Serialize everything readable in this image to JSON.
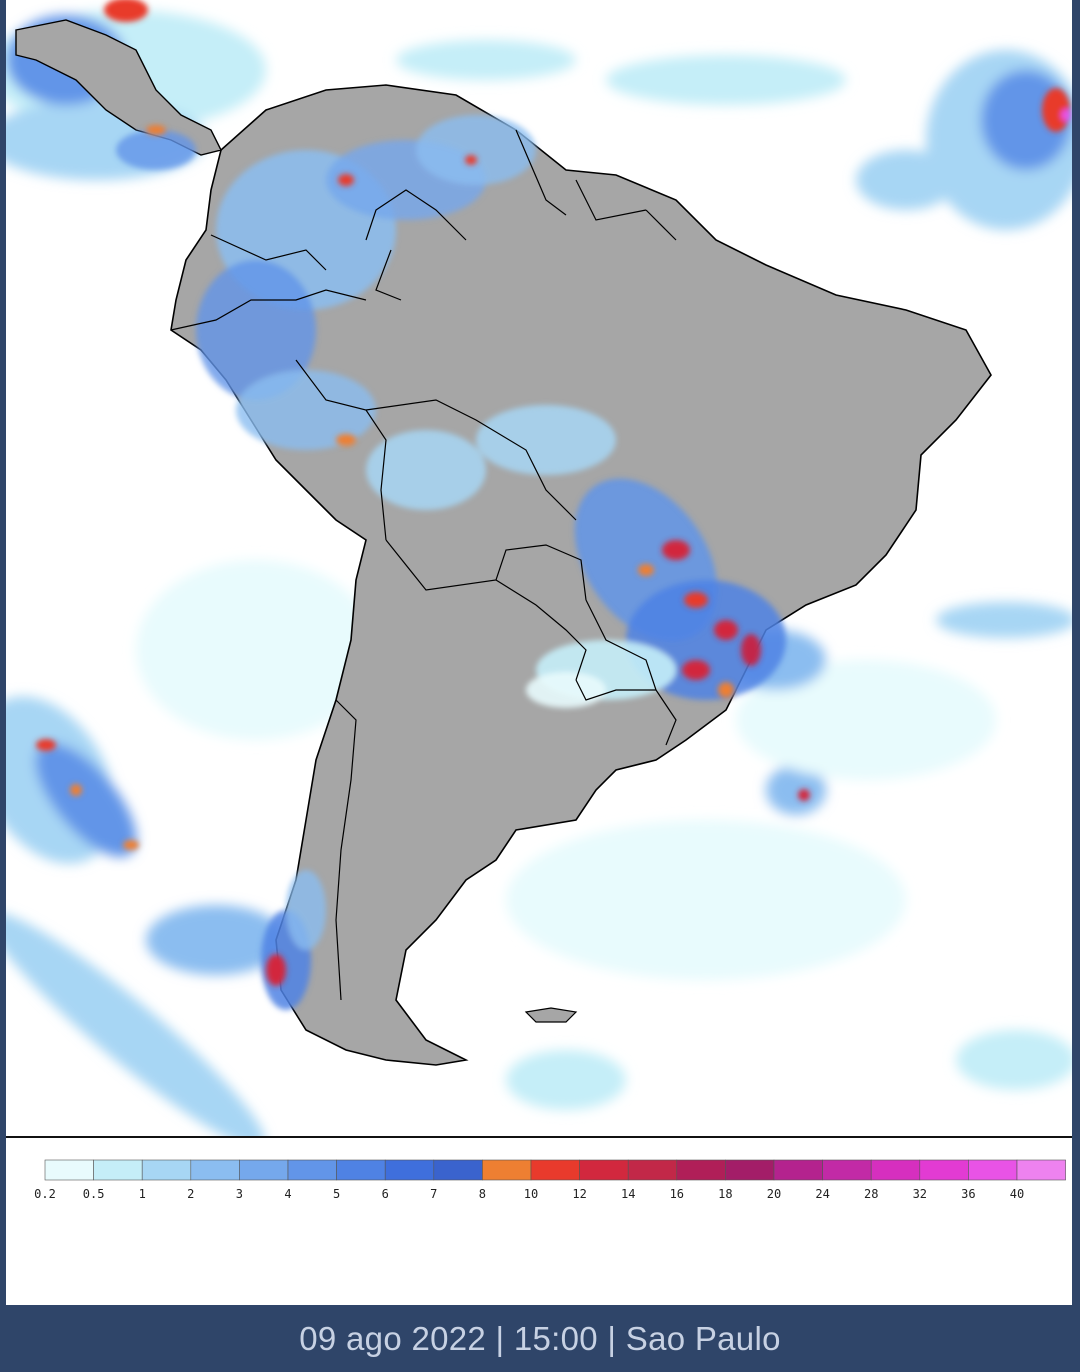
{
  "map": {
    "ocean_color": "#ffffff",
    "land_color": "#a6a6a6",
    "border_color": "#000000",
    "region": "South America"
  },
  "legend": {
    "ticks": [
      "0.2",
      "0.5",
      "1",
      "2",
      "3",
      "4",
      "5",
      "6",
      "7",
      "8",
      "10",
      "12",
      "14",
      "16",
      "18",
      "20",
      "24",
      "28",
      "32",
      "36",
      "40"
    ],
    "colors": [
      "#e8fbfd",
      "#c5eef8",
      "#a7d6f4",
      "#8bbdf0",
      "#75a8ec",
      "#6295e8",
      "#4f82e4",
      "#3f6fdc",
      "#3a63cd",
      "#ee7f32",
      "#e83a2c",
      "#d2283e",
      "#c22848",
      "#b01f58",
      "#a31d68",
      "#b4238e",
      "#c22aa6",
      "#d62fbf",
      "#e23bd3",
      "#e853e6",
      "#ee82ef"
    ]
  },
  "footer": {
    "caption": "09 ago 2022 | 15:00 | Sao Paulo"
  }
}
